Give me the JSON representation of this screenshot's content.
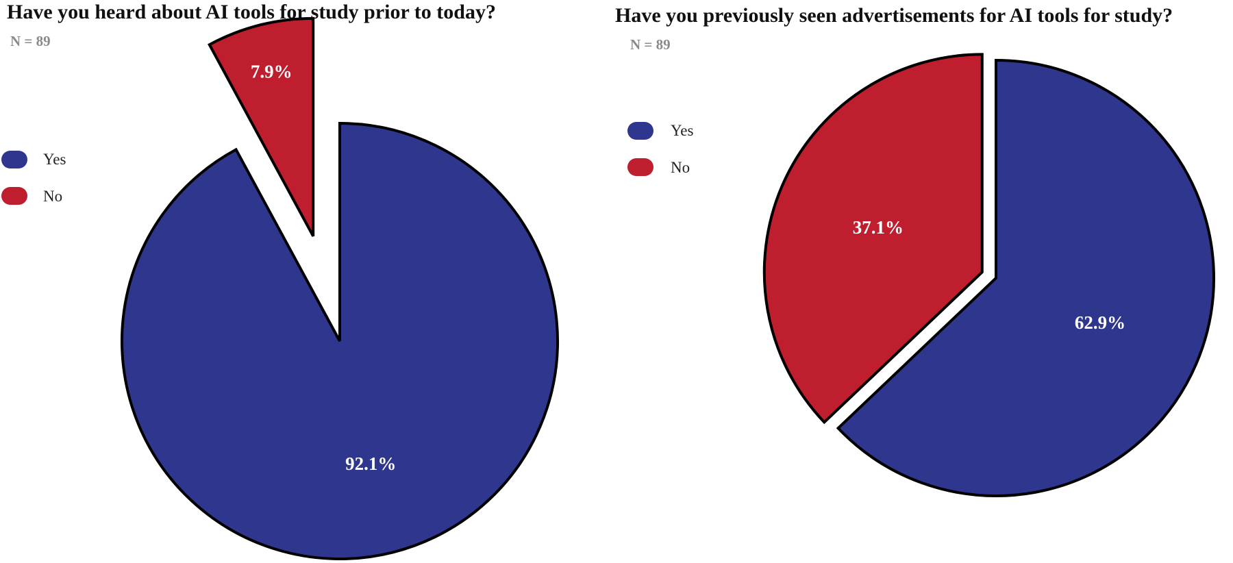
{
  "chart_data": [
    {
      "type": "pie",
      "title": "Have you heard about AI tools for study prior to today?",
      "subtitle": "N = 89",
      "categories": [
        "Yes",
        "No"
      ],
      "values": [
        92.1,
        7.9
      ],
      "value_labels": [
        "92.1%",
        "7.9%"
      ],
      "colors": [
        "#2e368e",
        "#be1e2d"
      ],
      "exploded": "No",
      "legend": {
        "placement": "left",
        "items": [
          "Yes",
          "No"
        ]
      }
    },
    {
      "type": "pie",
      "title": "Have you previously seen advertisements for AI tools for study?",
      "subtitle": "N = 89",
      "categories": [
        "Yes",
        "No"
      ],
      "values": [
        62.9,
        37.1
      ],
      "value_labels": [
        "62.9%",
        "37.1%"
      ],
      "colors": [
        "#2e368e",
        "#be1e2d"
      ],
      "exploded": "No",
      "legend": {
        "placement": "left",
        "items": [
          "Yes",
          "No"
        ]
      }
    }
  ]
}
